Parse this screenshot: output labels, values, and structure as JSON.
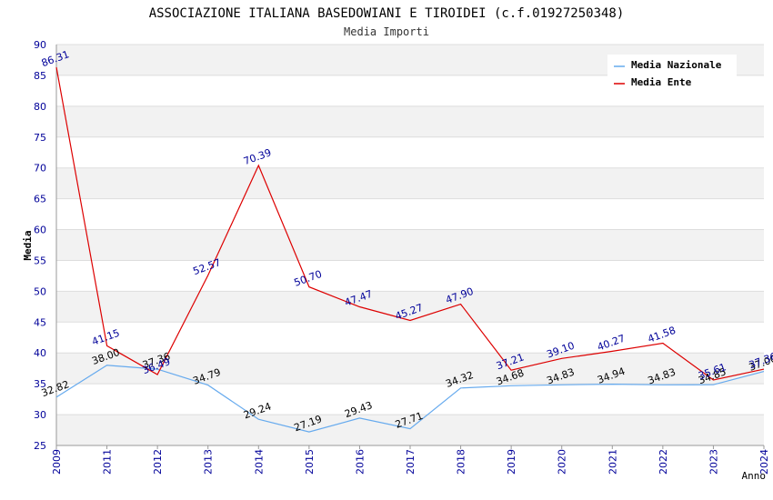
{
  "chart_data": {
    "type": "line",
    "title": "ASSOCIAZIONE ITALIANA BASEDOWIANI E TIROIDEI (c.f.01927250348)",
    "subtitle": "Media Importi",
    "xlabel": "Anno",
    "ylabel": "Media",
    "x": [
      "2009",
      "2011",
      "2012",
      "2013",
      "2014",
      "2015",
      "2016",
      "2017",
      "2018",
      "2019",
      "2020",
      "2021",
      "2022",
      "2023",
      "2024"
    ],
    "ylim": [
      25,
      90
    ],
    "yticks": [
      "25",
      "30",
      "35",
      "40",
      "45",
      "50",
      "55",
      "60",
      "65",
      "70",
      "75",
      "80",
      "85",
      "90"
    ],
    "grid": true,
    "legend_position": "top-right",
    "series": [
      {
        "name": "Media Nazionale",
        "color": "#66aaee",
        "label_color": "#000000",
        "values": [
          32.82,
          38.0,
          37.36,
          34.79,
          29.24,
          27.19,
          29.43,
          27.71,
          34.32,
          34.68,
          34.83,
          34.94,
          34.83,
          34.85,
          37.0
        ],
        "labels": [
          "32.82",
          "38.00",
          "37.36",
          "34.79",
          "29.24",
          "27.19",
          "29.43",
          "27.71",
          "34.32",
          "34.68",
          "34.83",
          "34.94",
          "34.83",
          "34.85",
          "37.00"
        ]
      },
      {
        "name": "Media Ente",
        "color": "#dd0000",
        "label_color": "#000099",
        "values": [
          86.31,
          41.15,
          36.49,
          52.57,
          70.39,
          50.7,
          47.47,
          45.27,
          47.9,
          37.21,
          39.1,
          40.27,
          41.58,
          35.61,
          37.36
        ],
        "labels": [
          "86.31",
          "41.15",
          "36.49",
          "52.57",
          "70.39",
          "50.70",
          "47.47",
          "45.27",
          "47.90",
          "37.21",
          "39.10",
          "40.27",
          "41.58",
          "35.61",
          "37.36"
        ]
      }
    ]
  }
}
